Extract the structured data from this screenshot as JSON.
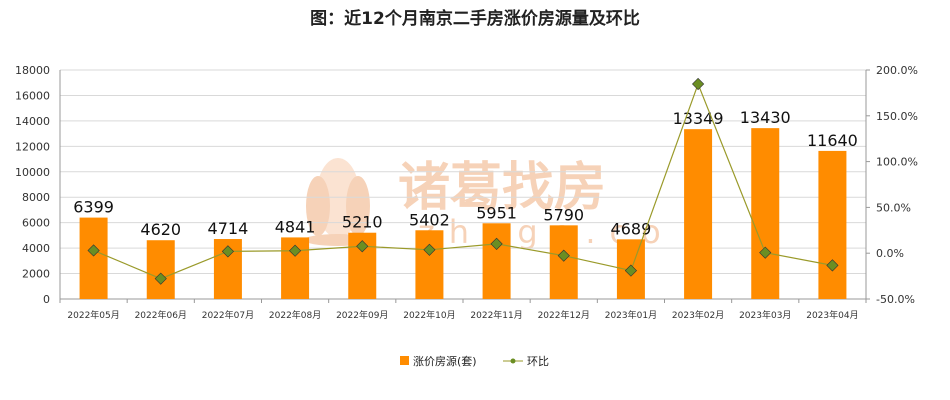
{
  "chart_data": {
    "type": "bar",
    "title": "图：近12个月南京二手房涨价房源量及环比",
    "categories": [
      "2022年05月",
      "2022年06月",
      "2022年07月",
      "2022年08月",
      "2022年09月",
      "2022年10月",
      "2022年11月",
      "2022年12月",
      "2023年01月",
      "2023年02月",
      "2023年03月",
      "2023年04月"
    ],
    "series": [
      {
        "name": "涨价房源(套)",
        "type": "bar",
        "axis": "left",
        "color": "#ff8c00",
        "values": [
          6399,
          4620,
          4714,
          4841,
          5210,
          5402,
          5951,
          5790,
          4689,
          13349,
          13430,
          11640
        ]
      },
      {
        "name": "环比",
        "type": "line",
        "axis": "right",
        "color": "#9a9a2a",
        "marker_color": "#6b8e23",
        "values": [
          3.0,
          -27.8,
          2.0,
          2.7,
          7.6,
          3.7,
          10.2,
          -2.7,
          -19.0,
          184.7,
          0.6,
          -13.3
        ]
      }
    ],
    "y_left": {
      "min": 0,
      "max": 18000,
      "ticks": [
        "0",
        "2000",
        "4000",
        "6000",
        "8000",
        "10000",
        "12000",
        "14000",
        "16000",
        "18000"
      ]
    },
    "y_right": {
      "min": -50,
      "max": 200,
      "ticks": [
        "-50.0%",
        "0.0%",
        "50.0%",
        "100.0%",
        "150.0%",
        "200.0%"
      ]
    },
    "grid": true,
    "legend_position": "bottom-center"
  },
  "watermark": {
    "text": "诸葛找房",
    "sub": "zhuge.co"
  }
}
